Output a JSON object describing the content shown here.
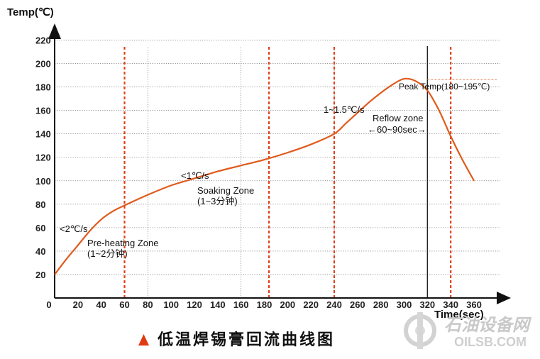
{
  "chart_data": {
    "type": "line",
    "title": "",
    "ylabel": "Temp(℃)",
    "xlabel": "Time(sec)",
    "xlim": [
      0,
      360
    ],
    "ylim": [
      0,
      230
    ],
    "x_ticks": [
      0,
      20,
      40,
      60,
      80,
      100,
      120,
      140,
      160,
      180,
      200,
      220,
      240,
      260,
      280,
      300,
      320,
      340,
      360
    ],
    "y_ticks": [
      20,
      40,
      60,
      80,
      100,
      120,
      140,
      160,
      180,
      200,
      220
    ],
    "grid": true,
    "series": [
      {
        "name": "",
        "color": "#e05a1c",
        "x": [
          0,
          10,
          20,
          30,
          40,
          50,
          60,
          80,
          100,
          120,
          140,
          160,
          180,
          200,
          220,
          240,
          250,
          260,
          270,
          280,
          290,
          300,
          310,
          320,
          330,
          340,
          350,
          360
        ],
        "y": [
          20,
          33,
          45,
          57,
          67,
          74,
          79,
          88,
          96,
          102,
          108,
          113,
          118,
          124,
          131,
          140,
          149,
          158,
          167,
          175,
          182,
          187,
          185,
          177,
          160,
          138,
          118,
          100
        ]
      }
    ],
    "zone_lines": {
      "color": "#e0401c",
      "x": [
        60,
        184,
        240,
        340
      ]
    },
    "peak_line": {
      "x": 320,
      "color": "#222222"
    },
    "peak_dashed_y": 185,
    "annotations": [
      {
        "id": "rate-preheat",
        "text": "<2℃/s"
      },
      {
        "id": "preheat-zone",
        "text": "Pre-heating Zone"
      },
      {
        "id": "preheat-time",
        "text": "(1~2分钟)"
      },
      {
        "id": "rate-soak",
        "text": "<1℃/s"
      },
      {
        "id": "soak-zone",
        "text": "Soaking Zone"
      },
      {
        "id": "soak-time",
        "text": "(1~3分钟)"
      },
      {
        "id": "rate-reflow",
        "text": "1~1.5℃/s"
      },
      {
        "id": "reflow-zone",
        "text": "Reflow zone"
      },
      {
        "id": "reflow-time",
        "text": "←60~90sec→"
      },
      {
        "id": "peak-temp",
        "text": "Peak Temp(180~195℃)"
      }
    ]
  },
  "caption": {
    "text": "低温焊锡膏回流曲线图",
    "marker_color": "#e03a10"
  },
  "watermark": {
    "cn": "石油设备网",
    "en": "OILSB.COM"
  }
}
